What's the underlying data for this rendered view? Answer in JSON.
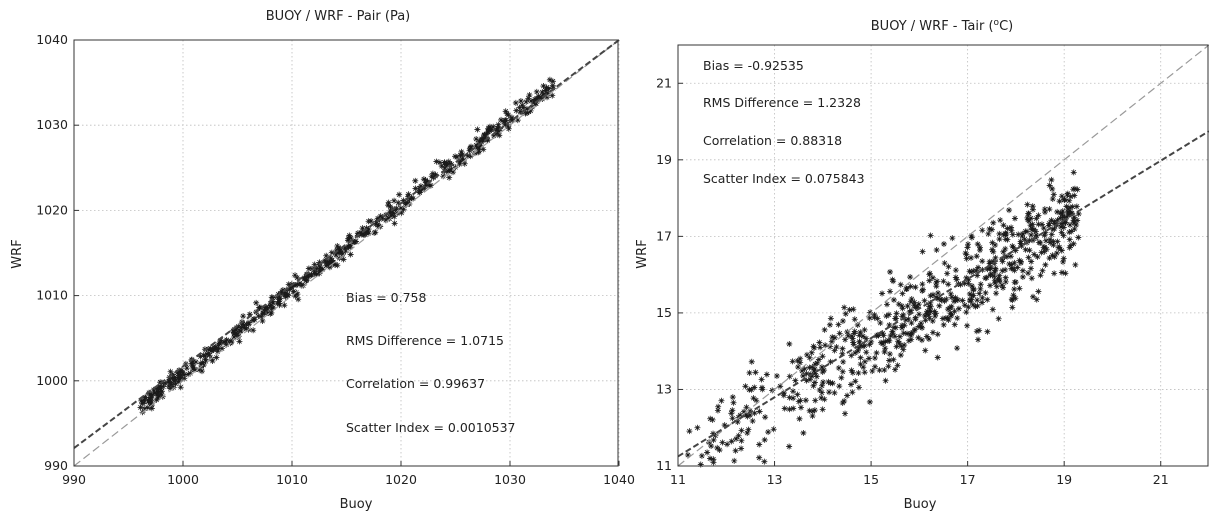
{
  "chart_data": [
    {
      "type": "scatter",
      "title": "BUOY  / WRF - Pair (Pa)",
      "xlabel": "Buoy",
      "ylabel": "WRF",
      "xlim": [
        990,
        1040
      ],
      "ylim": [
        990,
        1040
      ],
      "xticks": [
        "990",
        "1000",
        "1010",
        "1020",
        "1030",
        "1040"
      ],
      "yticks": [
        "990",
        "1000",
        "1010",
        "1020",
        "1030",
        "1040"
      ],
      "grid": true,
      "marker": "*",
      "stats": [
        "Bias = 0.758",
        "RMS Difference = 1.0715",
        "Correlation = 0.99637",
        "Scatter Index = 0.0010537"
      ],
      "reference_line": {
        "slope": 1,
        "intercept": 0
      },
      "fit_line": {
        "x": [
          990,
          1040
        ],
        "y": [
          992.1,
          1040
        ]
      },
      "points_desc": "about 500 points tightly along the 1:1 line from x≈996 to x≈1034",
      "point_cloud": {
        "x_from": 996,
        "x_to": 1034,
        "center_slope": 1.0,
        "center_intercept": 0.78,
        "spread": 0.6,
        "n": 520,
        "seed": 7
      }
    },
    {
      "type": "scatter",
      "title_parts": [
        "BUOY  / WRF - Tair (",
        "o",
        "C)"
      ],
      "xlabel": "Buoy",
      "ylabel": "WRF",
      "xlim": [
        11,
        22
      ],
      "ylim": [
        11,
        22
      ],
      "xticks": [
        "11",
        "13",
        "15",
        "17",
        "19",
        "21"
      ],
      "yticks": [
        "11",
        "13",
        "15",
        "17",
        "19",
        "21"
      ],
      "grid": true,
      "marker": "*",
      "stats": [
        "Bias = -0.92535",
        "RMS Difference = 1.2328",
        "Correlation = 0.88318",
        "Scatter Index = 0.075843"
      ],
      "reference_line": {
        "slope": 1,
        "intercept": 0
      },
      "fit_line": {
        "x": [
          11,
          22
        ],
        "y": [
          11.25,
          19.75
        ]
      },
      "points_desc": "about 700 points spread from x≈11 to x≈19.3, below the 1:1 line",
      "point_cloud": {
        "x_from": 11.1,
        "x_to": 19.3,
        "center_slope": 0.77,
        "center_intercept": 2.7,
        "spread": 0.6,
        "n": 700,
        "seed": 13
      }
    }
  ]
}
